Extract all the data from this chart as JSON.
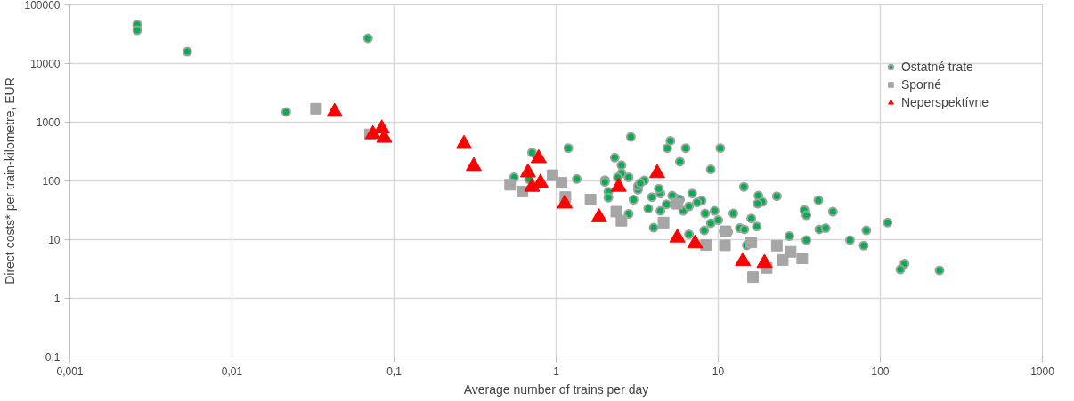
{
  "chart_data": {
    "type": "scatter",
    "xlabel": "Average number of trains per day",
    "ylabel": "Direct costs* per train-kilometre, EUR",
    "log": "xy",
    "grid": true,
    "legend": "top right",
    "xlim": [
      0.001,
      1000
    ],
    "ylim": [
      0.1,
      100000
    ],
    "xticks": [
      {
        "value": 0.001,
        "label": "0,001"
      },
      {
        "value": 0.01,
        "label": "0,01"
      },
      {
        "value": 0.1,
        "label": "0,1"
      },
      1,
      10,
      100,
      1000
    ],
    "yticks": [
      {
        "value": 0.1,
        "label": "0,1"
      },
      1,
      10,
      100,
      1000,
      10000,
      100000
    ],
    "series": [
      {
        "name": "Ostatné trate",
        "color": "#00b050",
        "marker": "circle",
        "x": [
          0.0026,
          0.0026,
          0.0053,
          0.069,
          0.0216,
          0.71,
          0.55,
          1.19,
          2.89,
          2.3,
          2.53,
          2.53,
          5.07,
          4.85,
          6.3,
          5.8,
          10.3,
          9.0,
          6.07,
          8.3,
          9.5,
          10,
          8.2,
          6.6,
          14.4,
          17.7,
          18.7,
          17.5,
          23,
          41.5,
          34,
          35,
          51,
          12.4,
          16,
          17.3,
          13.6,
          14.5,
          42,
          46,
          82,
          111,
          27.5,
          35,
          65,
          79,
          232,
          141,
          133,
          0.68,
          1.34,
          2.0,
          2.8,
          2.4,
          2.0,
          3.5,
          2.1,
          2.1,
          2.8,
          4.4,
          5.5,
          5.5,
          7.9,
          6.9,
          3.2,
          3.2,
          3.3,
          4.3,
          3.0,
          3.9,
          4.8,
          3.7,
          4.4,
          6.6,
          7.4,
          5.8,
          5.2,
          11.5,
          15,
          10.8,
          4,
          9
        ],
        "values": [
          46000,
          37000,
          16000,
          27000,
          1500,
          304,
          115,
          361,
          560,
          249,
          185,
          135,
          481,
          361,
          361,
          212,
          361,
          157,
          31,
          28,
          31,
          21.5,
          14.4,
          12.3,
          79,
          56,
          44,
          41,
          55,
          47,
          32,
          26,
          30,
          28,
          23,
          16.8,
          15.7,
          15,
          15,
          15.7,
          14.4,
          19.5,
          11.5,
          9.8,
          9.8,
          7.9,
          3.0,
          3.9,
          3.1,
          107,
          108,
          103,
          115,
          115,
          96,
          102,
          65,
          52,
          27.5,
          61,
          50,
          41.5,
          46,
          61,
          71,
          82,
          92,
          74,
          48,
          53,
          40,
          34,
          31,
          37,
          43,
          48,
          56,
          13.5,
          8.0,
          13.9,
          16,
          19
        ]
      },
      {
        "name": "Sporné",
        "color": "#a6a6a6",
        "marker": "square",
        "x": [
          0.033,
          0.071,
          0.52,
          0.62,
          0.95,
          1.08,
          1.14,
          1.63,
          2.35,
          2.53,
          4.6,
          5.6,
          8.4,
          11.1,
          11,
          16,
          16.4,
          19.9,
          23,
          25,
          28,
          33
        ],
        "values": [
          1700,
          620,
          86,
          66,
          125,
          93,
          53,
          48,
          30,
          21,
          19.5,
          41,
          8.1,
          13.9,
          8,
          9,
          2.3,
          3.3,
          7.9,
          4.5,
          6.2,
          4.8
        ]
      },
      {
        "name": "Neperspektívne",
        "color": "#ff0000",
        "marker": "triangle",
        "x": [
          0.043,
          0.074,
          0.084,
          0.087,
          0.27,
          0.31,
          0.78,
          0.67,
          0.8,
          0.71,
          1.13,
          1.84,
          2.43,
          4.2,
          5.6,
          7.2,
          14.2,
          19.3
        ],
        "values": [
          1500,
          625,
          780,
          540,
          425,
          178,
          243,
          139,
          93,
          79,
          41,
          24,
          79,
          135,
          10.8,
          8.6,
          4.3,
          4.0
        ]
      }
    ]
  }
}
